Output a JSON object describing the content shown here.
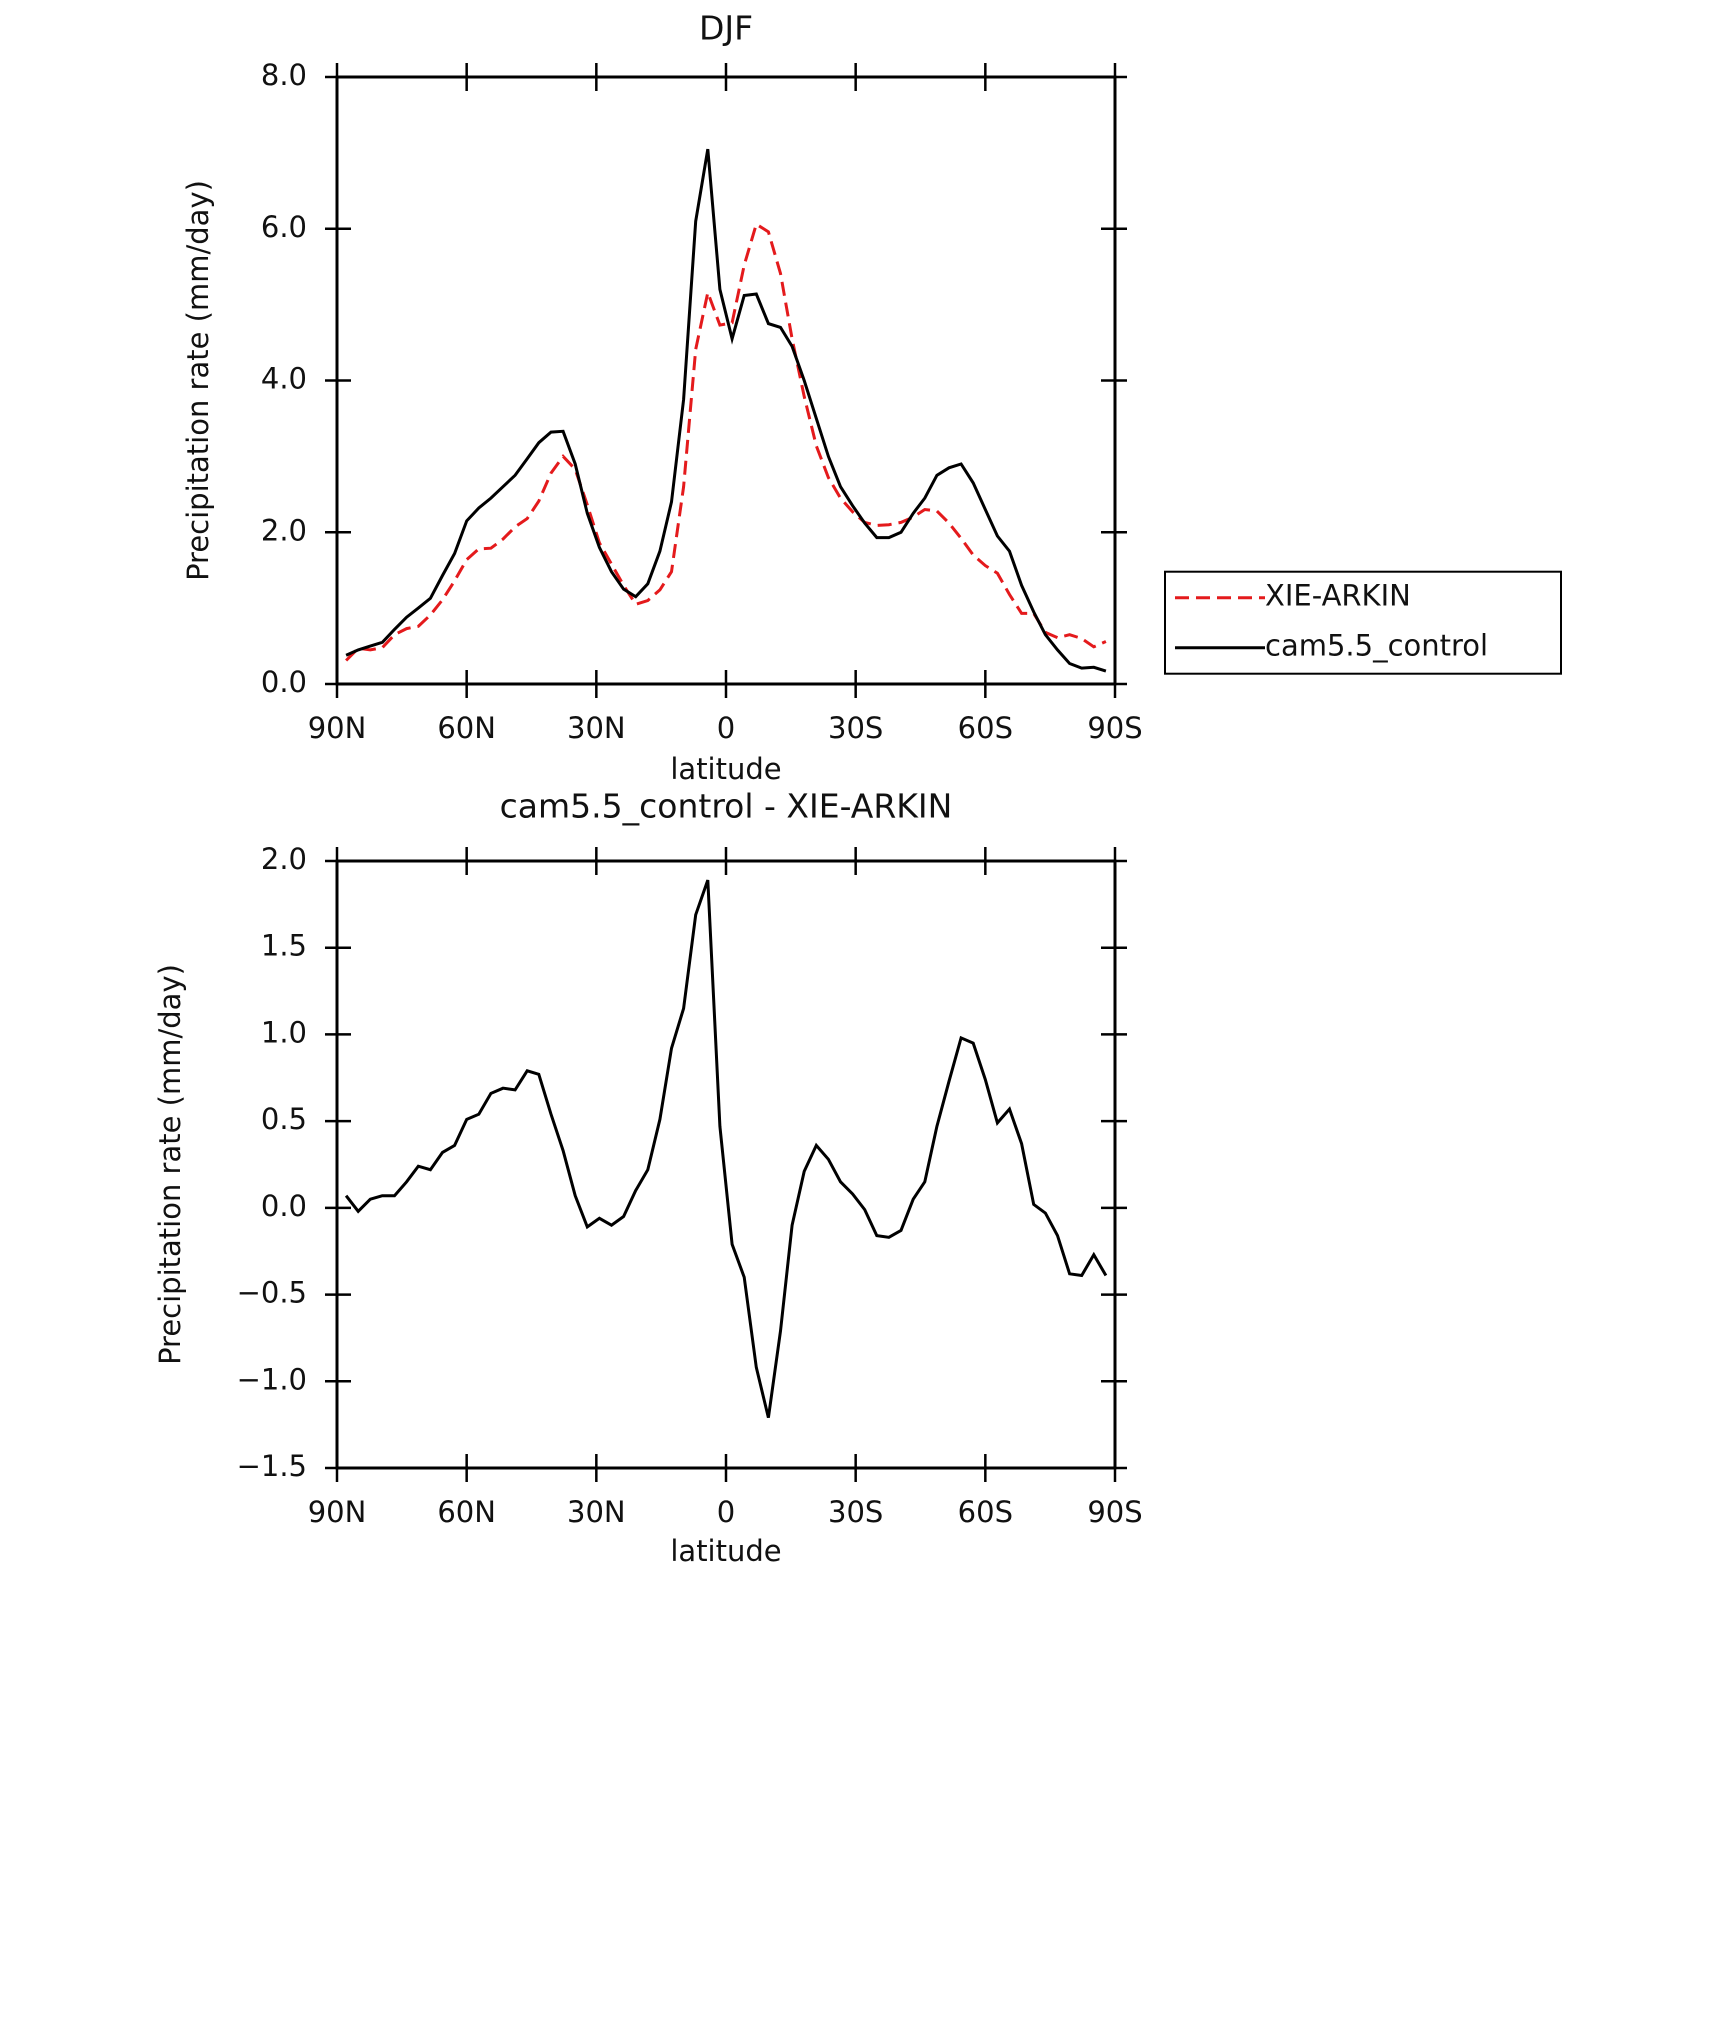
{
  "chart_data": [
    {
      "type": "line",
      "title": "DJF",
      "xlabel": "latitude",
      "ylabel": "Precipitation rate (mm/day)",
      "x": [
        87.9,
        85.1,
        82.3,
        79.5,
        76.7,
        73.9,
        71.2,
        68.4,
        65.6,
        62.8,
        60.0,
        57.2,
        54.4,
        51.6,
        48.8,
        46.0,
        43.3,
        40.5,
        37.7,
        34.9,
        32.1,
        29.3,
        26.5,
        23.7,
        20.9,
        18.1,
        15.3,
        12.6,
        9.8,
        7.0,
        4.2,
        1.4,
        -1.4,
        -4.2,
        -7.0,
        -9.8,
        -12.6,
        -15.3,
        -18.1,
        -20.9,
        -23.7,
        -26.5,
        -29.3,
        -32.1,
        -34.9,
        -37.7,
        -40.5,
        -43.3,
        -46.0,
        -48.8,
        -51.6,
        -54.4,
        -57.2,
        -60.0,
        -62.8,
        -65.6,
        -68.4,
        -71.2,
        -73.9,
        -76.7,
        -79.5,
        -82.3,
        -85.1,
        -87.9
      ],
      "xlim": [
        90,
        -90
      ],
      "xticks": [
        {
          "value": 90,
          "label": "90N"
        },
        {
          "value": 60,
          "label": "60N"
        },
        {
          "value": 30,
          "label": "30N"
        },
        0,
        {
          "value": -30,
          "label": "30S"
        },
        {
          "value": -60,
          "label": "60S"
        },
        {
          "value": -90,
          "label": "90S"
        }
      ],
      "ylim": [
        0,
        8
      ],
      "yticks": [
        {
          "value": 0,
          "label": "0.0"
        },
        {
          "value": 2,
          "label": "2.0"
        },
        {
          "value": 4,
          "label": "4.0"
        },
        {
          "value": 6,
          "label": "6.0"
        },
        {
          "value": 8,
          "label": "8.0"
        }
      ],
      "legend": "right",
      "series": [
        {
          "name": "XIE-ARKIN",
          "color": "#e41a1c",
          "dashed": true,
          "values": [
            0.31,
            0.47,
            0.45,
            0.48,
            0.65,
            0.73,
            0.76,
            0.91,
            1.11,
            1.36,
            1.64,
            1.78,
            1.79,
            1.91,
            2.07,
            2.18,
            2.41,
            2.78,
            3.0,
            2.83,
            2.36,
            1.86,
            1.58,
            1.3,
            1.05,
            1.1,
            1.24,
            1.48,
            2.6,
            4.41,
            5.16,
            4.73,
            4.76,
            5.52,
            6.06,
            5.96,
            5.41,
            4.55,
            3.79,
            3.14,
            2.72,
            2.45,
            2.27,
            2.13,
            2.09,
            2.1,
            2.13,
            2.2,
            2.3,
            2.28,
            2.12,
            1.92,
            1.7,
            1.56,
            1.46,
            1.18,
            0.93,
            0.93,
            0.68,
            0.61,
            0.65,
            0.6,
            0.49,
            0.56
          ]
        },
        {
          "name": "cam5.5_control",
          "color": "#000000",
          "dashed": false,
          "values": [
            0.38,
            0.45,
            0.5,
            0.55,
            0.72,
            0.88,
            1.0,
            1.13,
            1.43,
            1.72,
            2.15,
            2.32,
            2.45,
            2.6,
            2.75,
            2.97,
            3.18,
            3.32,
            3.33,
            2.9,
            2.25,
            1.8,
            1.48,
            1.25,
            1.15,
            1.32,
            1.75,
            2.4,
            3.75,
            6.1,
            7.05,
            5.2,
            4.55,
            5.12,
            5.14,
            4.75,
            4.7,
            4.45,
            4.0,
            3.5,
            3.0,
            2.6,
            2.35,
            2.12,
            1.93,
            1.93,
            2.0,
            2.25,
            2.45,
            2.75,
            2.85,
            2.9,
            2.65,
            2.3,
            1.95,
            1.75,
            1.3,
            0.95,
            0.65,
            0.45,
            0.27,
            0.21,
            0.22,
            0.17
          ]
        }
      ]
    },
    {
      "type": "line",
      "title": "cam5.5_control - XIE-ARKIN",
      "xlabel": "latitude",
      "ylabel": "Precipitation rate (mm/day)",
      "x": [
        87.9,
        85.1,
        82.3,
        79.5,
        76.7,
        73.9,
        71.2,
        68.4,
        65.6,
        62.8,
        60.0,
        57.2,
        54.4,
        51.6,
        48.8,
        46.0,
        43.3,
        40.5,
        37.7,
        34.9,
        32.1,
        29.3,
        26.5,
        23.7,
        20.9,
        18.1,
        15.3,
        12.6,
        9.8,
        7.0,
        4.2,
        1.4,
        -1.4,
        -4.2,
        -7.0,
        -9.8,
        -12.6,
        -15.3,
        -18.1,
        -20.9,
        -23.7,
        -26.5,
        -29.3,
        -32.1,
        -34.9,
        -37.7,
        -40.5,
        -43.3,
        -46.0,
        -48.8,
        -51.6,
        -54.4,
        -57.2,
        -60.0,
        -62.8,
        -65.6,
        -68.4,
        -71.2,
        -73.9,
        -76.7,
        -79.5,
        -82.3,
        -85.1,
        -87.9
      ],
      "xlim": [
        90,
        -90
      ],
      "xticks": [
        {
          "value": 90,
          "label": "90N"
        },
        {
          "value": 60,
          "label": "60N"
        },
        {
          "value": 30,
          "label": "30N"
        },
        0,
        {
          "value": -30,
          "label": "30S"
        },
        {
          "value": -60,
          "label": "60S"
        },
        {
          "value": -90,
          "label": "90S"
        }
      ],
      "ylim": [
        -1.5,
        2
      ],
      "yticks": [
        {
          "value": -1.5,
          "label": "−1.5"
        },
        {
          "value": -1,
          "label": "−1.0"
        },
        {
          "value": -0.5,
          "label": "−0.5"
        },
        {
          "value": 0,
          "label": "0.0"
        },
        0.5,
        {
          "value": 1,
          "label": "1.0"
        },
        1.5,
        {
          "value": 2,
          "label": "2.0"
        }
      ],
      "series": [
        {
          "color": "#000000",
          "dashed": false,
          "values": [
            0.07,
            -0.02,
            0.05,
            0.07,
            0.07,
            0.15,
            0.24,
            0.22,
            0.32,
            0.36,
            0.51,
            0.54,
            0.66,
            0.69,
            0.68,
            0.79,
            0.77,
            0.54,
            0.33,
            0.07,
            -0.11,
            -0.06,
            -0.1,
            -0.05,
            0.1,
            0.22,
            0.51,
            0.92,
            1.15,
            1.69,
            1.89,
            0.47,
            -0.21,
            -0.4,
            -0.92,
            -1.21,
            -0.71,
            -0.1,
            0.21,
            0.36,
            0.28,
            0.15,
            0.08,
            -0.01,
            -0.16,
            -0.17,
            -0.13,
            0.05,
            0.15,
            0.47,
            0.73,
            0.98,
            0.95,
            0.74,
            0.49,
            0.57,
            0.37,
            0.02,
            -0.03,
            -0.16,
            -0.38,
            -0.39,
            -0.27,
            -0.39
          ]
        }
      ]
    }
  ]
}
